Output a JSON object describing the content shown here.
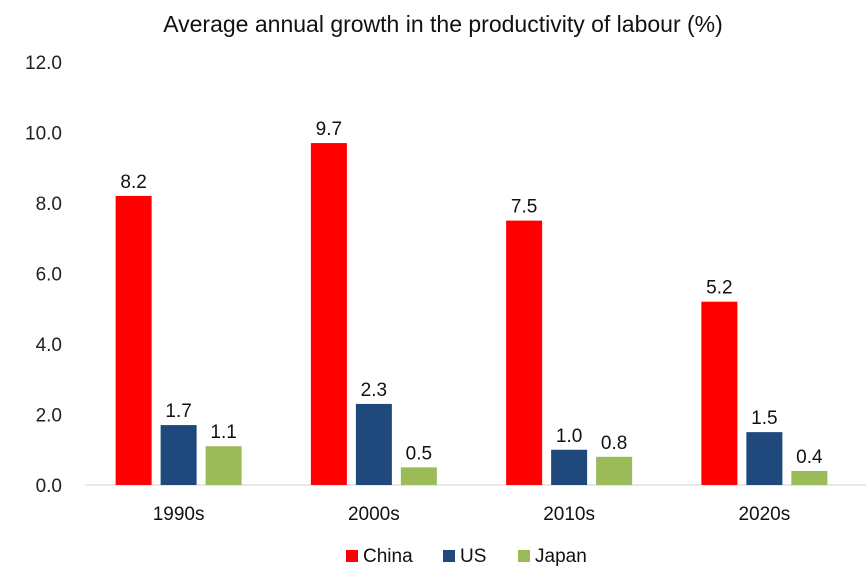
{
  "chart_data": {
    "type": "bar",
    "title": "Average annual growth in the productivity of labour (%)",
    "xlabel": "",
    "ylabel": "",
    "categories": [
      "1990s",
      "2000s",
      "2010s",
      "2020s"
    ],
    "series": [
      {
        "name": "China",
        "color": "#ff0000",
        "values": [
          8.2,
          9.7,
          7.5,
          5.2
        ],
        "labels": [
          "8.2",
          "9.7",
          "7.5",
          "5.2"
        ]
      },
      {
        "name": "US",
        "color": "#1f497d",
        "values": [
          1.7,
          2.3,
          1.0,
          1.5
        ],
        "labels": [
          "1.7",
          "2.3",
          "1.0",
          "1.5"
        ]
      },
      {
        "name": "Japan",
        "color": "#9bbb59",
        "values": [
          1.1,
          0.5,
          0.8,
          0.4
        ],
        "labels": [
          "1.1",
          "0.5",
          "0.8",
          "0.4"
        ]
      }
    ],
    "ylim": [
      0,
      12
    ],
    "yticks": [
      0,
      2,
      4,
      6,
      8,
      10,
      12
    ],
    "ytick_labels": [
      "0.0",
      "2.0",
      "4.0",
      "6.0",
      "8.0",
      "10.0",
      "12.0"
    ],
    "grid": false,
    "legend_position": "bottom-center",
    "data_labels": true
  }
}
